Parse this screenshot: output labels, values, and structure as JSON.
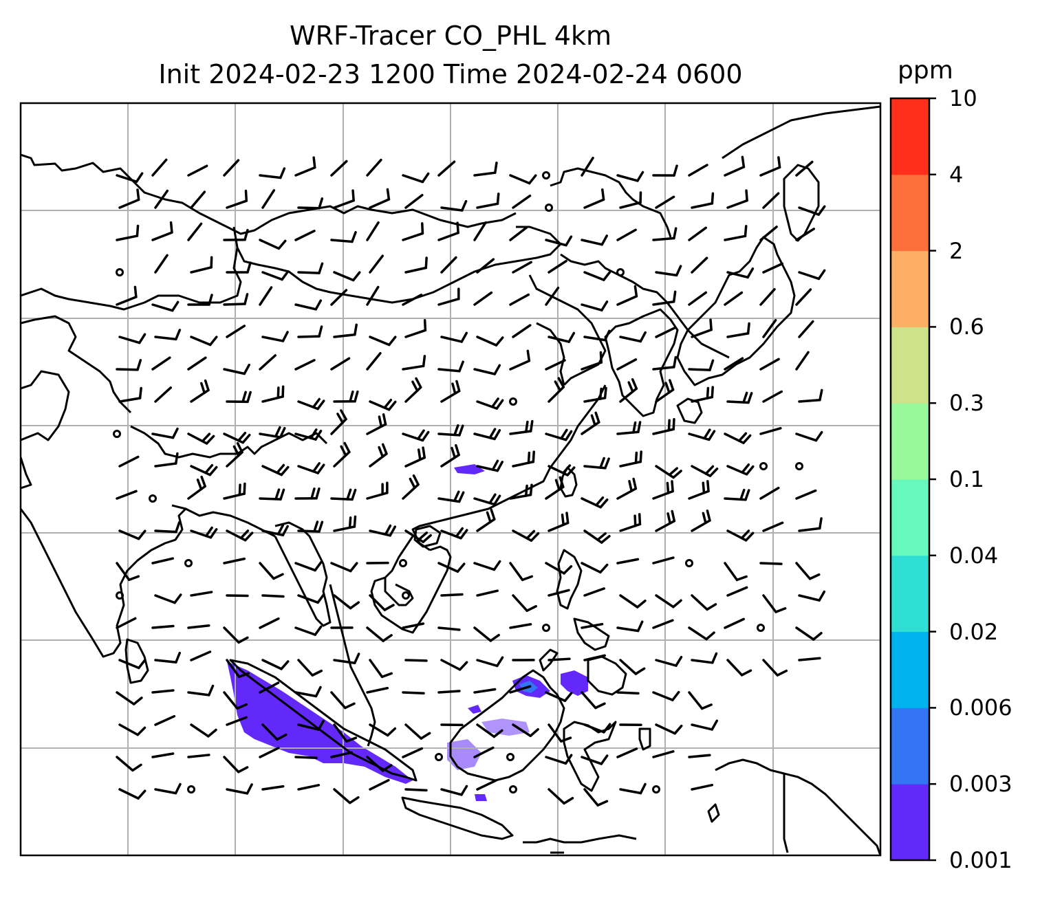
{
  "title": {
    "line1": "WRF-Tracer CO_PHL 4km",
    "line2": "Init 2024-02-23 1200 Time 2024-02-24 0600"
  },
  "colorbar": {
    "unit": "ppm",
    "levels": [
      "0.001",
      "0.003",
      "0.006",
      "0.02",
      "0.04",
      "0.1",
      "0.3",
      "0.6",
      "2",
      "4",
      "10"
    ],
    "colors": [
      "#6229fa",
      "#3375f2",
      "#00b2ee",
      "#2fdfd3",
      "#67f8bd",
      "#99f99a",
      "#cee28a",
      "#fdb063",
      "#fc6f3a",
      "#fe2f1b"
    ]
  },
  "map": {
    "gridlines": true,
    "coastline_color": "#000000",
    "tracer_field_color": "#6229fa",
    "tracer_field_color_secondary": "#3375f2"
  }
}
